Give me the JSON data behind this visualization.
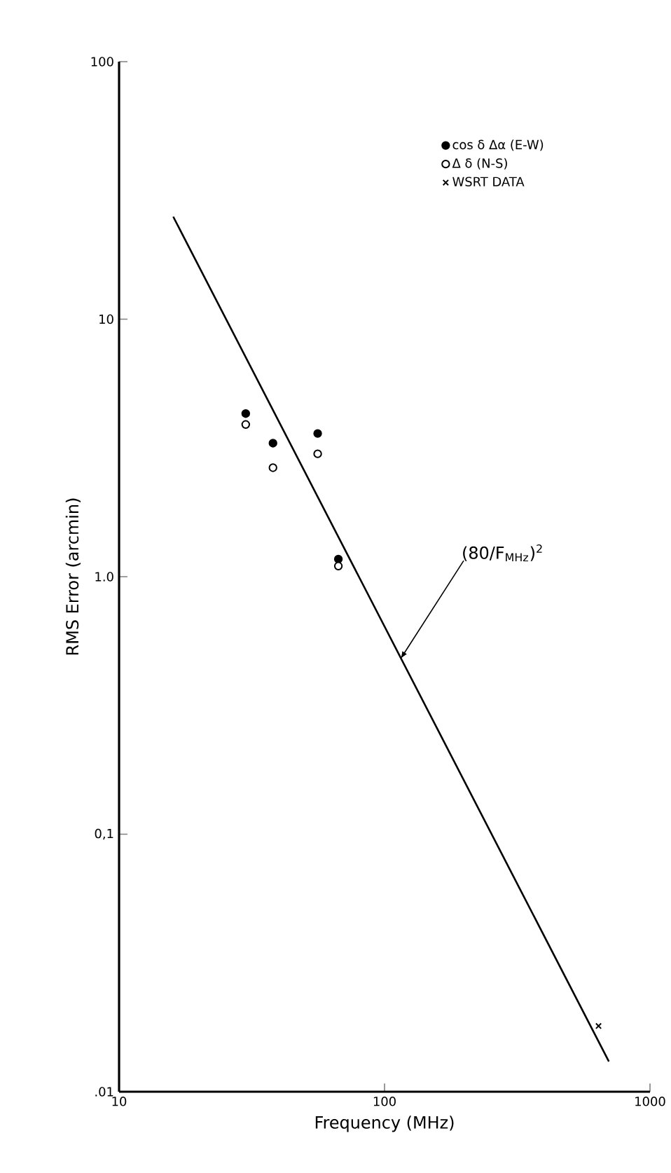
{
  "chart_data": {
    "type": "scatter",
    "xlabel": "Frequency (MHz)",
    "ylabel": "RMS Error (arcmin)",
    "log": "xy",
    "xlim": [
      10,
      1000
    ],
    "ylim": [
      0.01,
      100
    ],
    "xticks": [
      10,
      100,
      1000
    ],
    "yticks": [
      {
        "value": 0.01,
        "label": ".01"
      },
      {
        "value": 0.1,
        "label": "0,1"
      },
      {
        "value": 1,
        "label": "1.0"
      },
      10,
      100
    ],
    "grid": false,
    "legend": "top right",
    "series": [
      {
        "name": "cos δ Δα (E-W)",
        "marker": "circle",
        "color": "#000000",
        "x": [
          30,
          38,
          56,
          67
        ],
        "values": [
          4.3,
          3.3,
          3.6,
          1.17
        ]
      },
      {
        "name": "Δ δ (N-S)",
        "marker": "circle",
        "color": "#000000",
        "x": [
          30,
          38,
          56,
          67
        ],
        "values": [
          3.9,
          2.65,
          3.0,
          1.1
        ]
      },
      {
        "name": "WSRT DATA",
        "marker": "cross",
        "color": "#000000",
        "x": [
          640
        ],
        "values": [
          0.018
        ]
      },
      {
        "type": "line",
        "marker": "none",
        "line_style": "solid",
        "color": "#000000",
        "x": [
          16,
          700
        ],
        "values": [
          25,
          0.0131
        ]
      }
    ],
    "annotations": [
      {
        "text": "(80/F$_{MHz}$)$^{2}$",
        "x": 115,
        "y": 0.48
      }
    ]
  }
}
